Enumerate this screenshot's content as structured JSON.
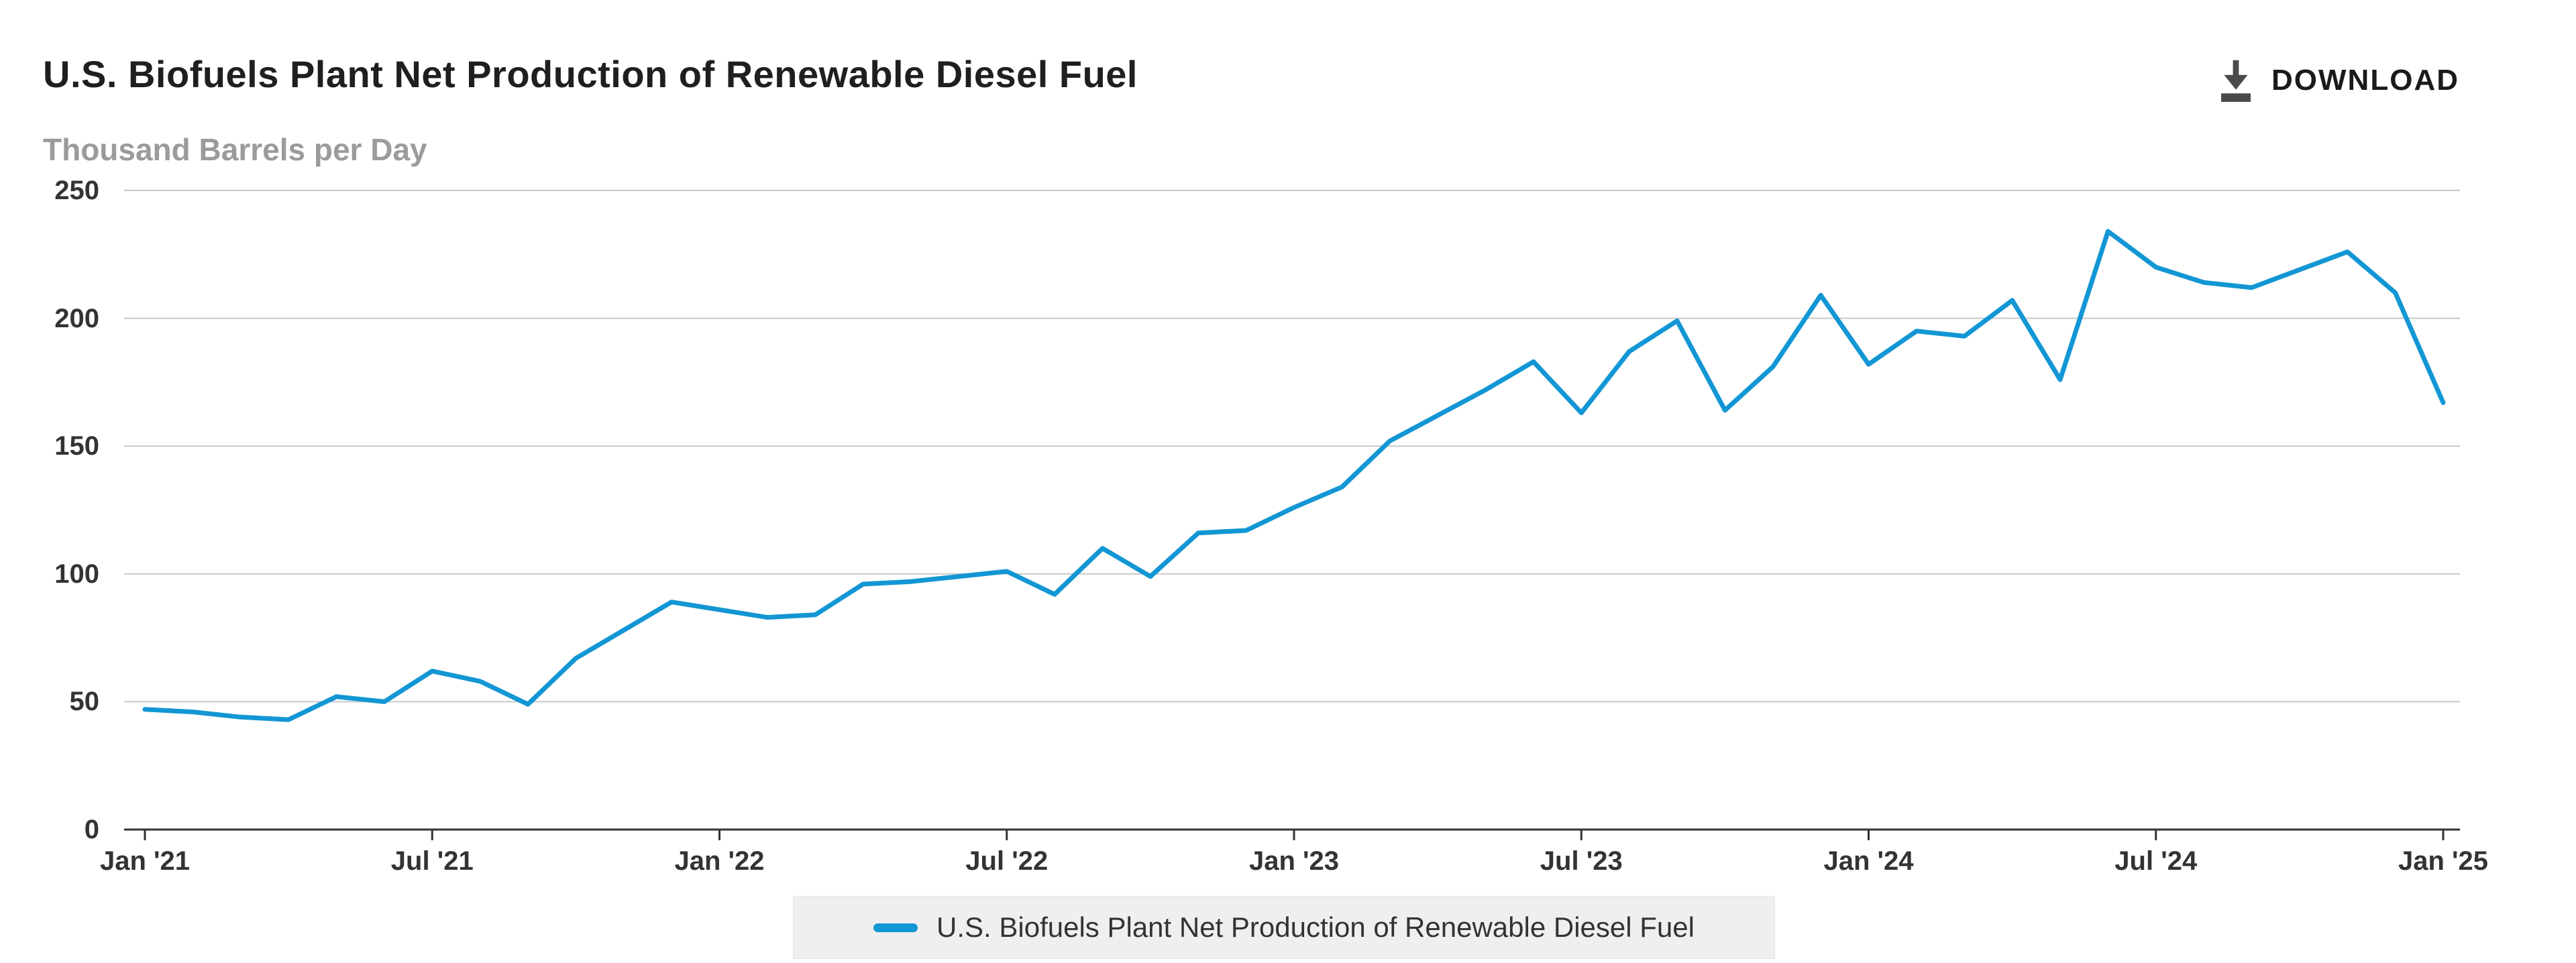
{
  "header": {
    "title": "U.S. Biofuels Plant Net Production of Renewable Diesel Fuel",
    "subtitle": "Thousand Barrels per Day",
    "download_label": "DOWNLOAD"
  },
  "legend": {
    "label": "U.S. Biofuels Plant Net Production of Renewable Diesel Fuel"
  },
  "colors": {
    "line": "#1396d4",
    "grid": "#c9c9c9",
    "axis": "#333333",
    "axis_text": "#333333",
    "subtitle_text": "#9b9b9b",
    "legend_bg": "#efefef",
    "download_icon": "#4a4a4a"
  },
  "chart_data": {
    "type": "line",
    "title": "U.S. Biofuels Plant Net Production of Renewable Diesel Fuel",
    "xlabel": "",
    "ylabel": "Thousand Barrels per Day",
    "ylim": [
      0,
      250
    ],
    "y_ticks": [
      0,
      50,
      100,
      150,
      200,
      250
    ],
    "grid": true,
    "legend_position": "bottom",
    "frequency": "monthly",
    "x_tick_labels": [
      "Jan '21",
      "Jul '21",
      "Jan '22",
      "Jul '22",
      "Jan '23",
      "Jul '23",
      "Jan '24",
      "Jul '24",
      "Jan '25"
    ],
    "x_tick_month_index": [
      0,
      6,
      12,
      18,
      24,
      30,
      36,
      42,
      48
    ],
    "series": [
      {
        "name": "U.S. Biofuels Plant Net Production of Renewable Diesel Fuel",
        "x": [
          "2021-01",
          "2021-02",
          "2021-03",
          "2021-04",
          "2021-05",
          "2021-06",
          "2021-07",
          "2021-08",
          "2021-09",
          "2021-10",
          "2021-11",
          "2021-12",
          "2022-01",
          "2022-02",
          "2022-03",
          "2022-04",
          "2022-05",
          "2022-06",
          "2022-07",
          "2022-08",
          "2022-09",
          "2022-10",
          "2022-11",
          "2022-12",
          "2023-01",
          "2023-02",
          "2023-03",
          "2023-04",
          "2023-05",
          "2023-06",
          "2023-07",
          "2023-08",
          "2023-09",
          "2023-10",
          "2023-11",
          "2023-12",
          "2024-01",
          "2024-02",
          "2024-03",
          "2024-04",
          "2024-05",
          "2024-06",
          "2024-07",
          "2024-08",
          "2024-09",
          "2024-10",
          "2024-11",
          "2024-12",
          "2025-01"
        ],
        "values": [
          47,
          46,
          44,
          43,
          52,
          50,
          62,
          58,
          49,
          67,
          78,
          89,
          86,
          83,
          84,
          96,
          97,
          99,
          101,
          92,
          110,
          99,
          116,
          117,
          126,
          134,
          152,
          162,
          172,
          183,
          163,
          187,
          199,
          164,
          181,
          209,
          182,
          195,
          193,
          207,
          176,
          234,
          220,
          214,
          212,
          219,
          226,
          210,
          167
        ]
      }
    ]
  }
}
